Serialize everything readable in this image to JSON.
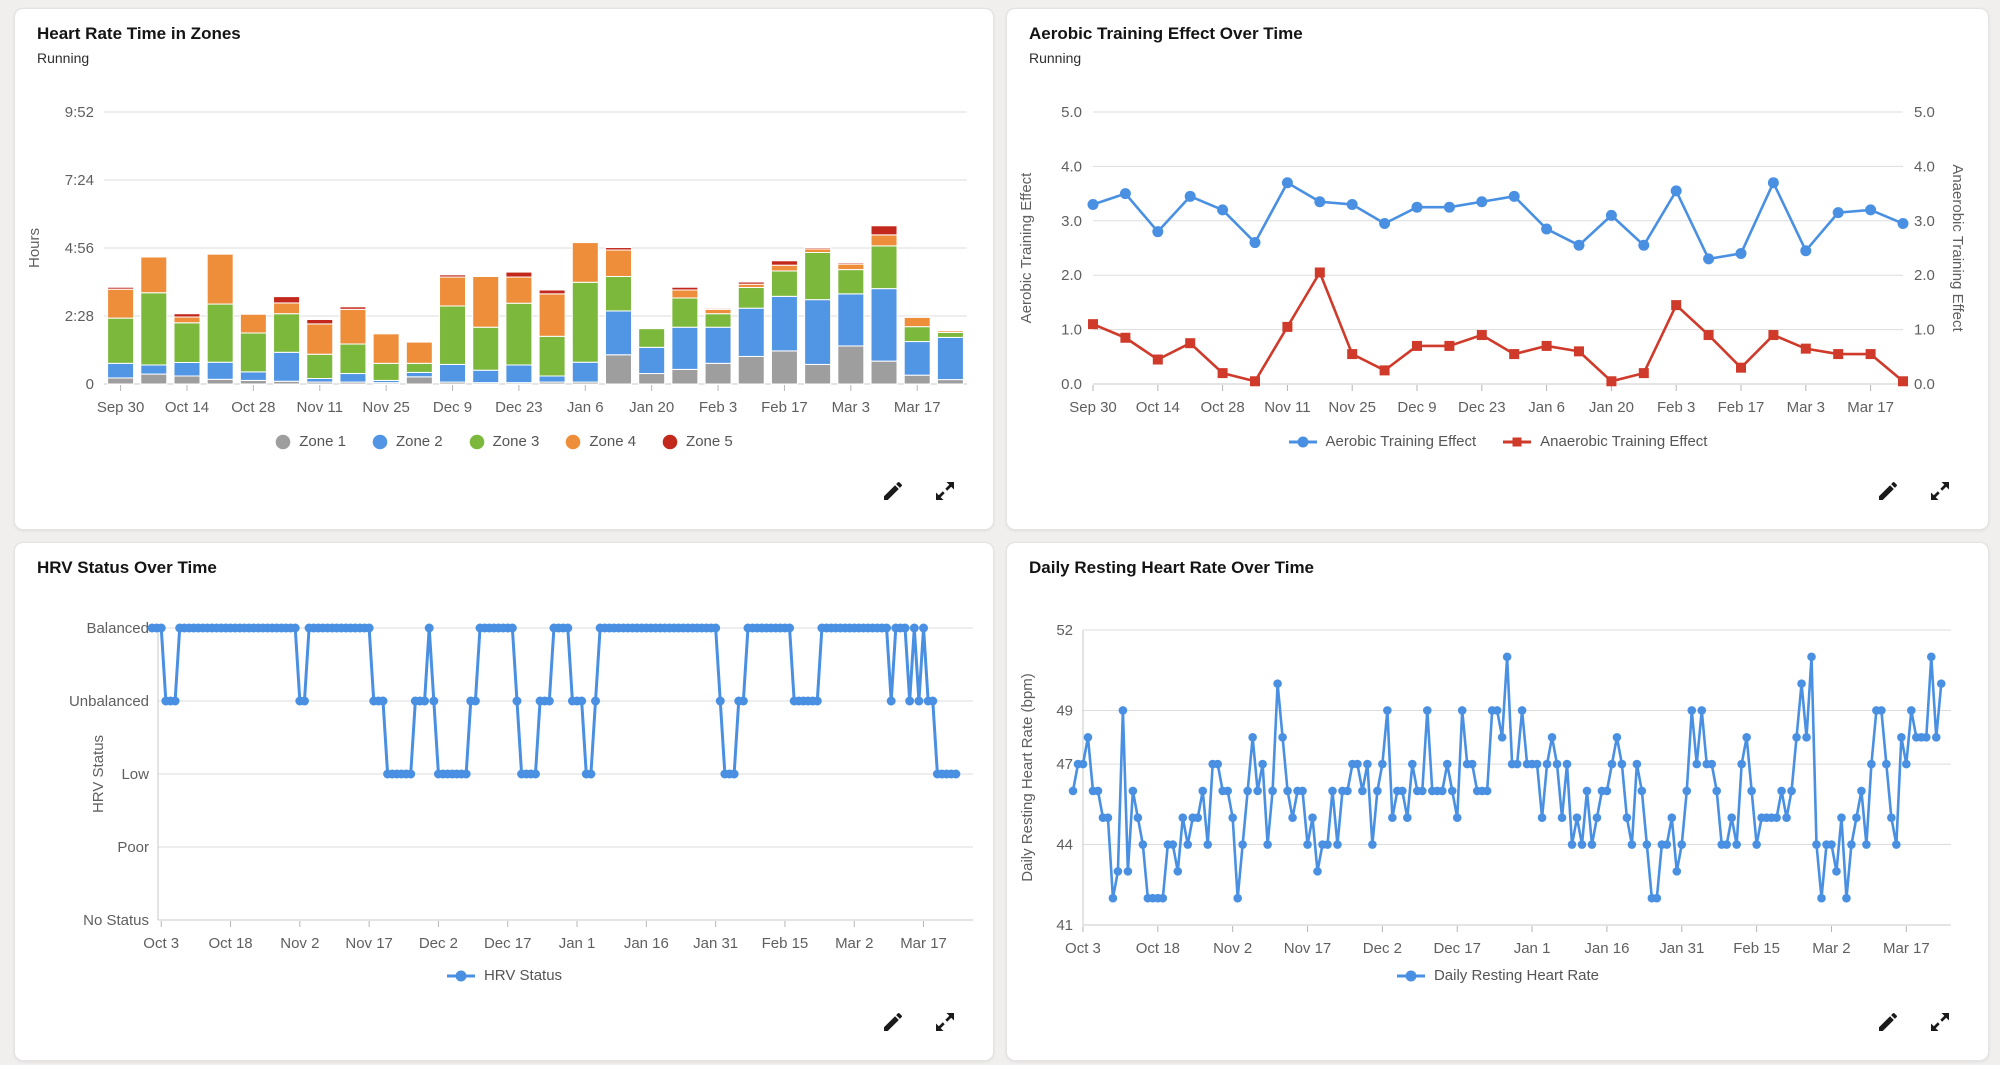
{
  "page": {
    "background": "#f0efee",
    "card_background": "#ffffff",
    "accent_blue": "#4a90e2",
    "accent_red": "#cf3a2a"
  },
  "icons": {
    "edit": "pencil-icon",
    "expand": "expand-arrows-icon"
  },
  "chart_data": [
    {
      "type": "bar",
      "stacked": true,
      "title": "Heart Rate Time in Zones",
      "subtitle": "Running",
      "ylabel": "Hours",
      "ymax": 9.8667,
      "grid": true,
      "legend_position": "bottom",
      "yticks": [
        {
          "v": 0,
          "label": "0"
        },
        {
          "v": 2.4667,
          "label": "2:28"
        },
        {
          "v": 4.9333,
          "label": "4:56"
        },
        {
          "v": 7.4,
          "label": "7:24"
        },
        {
          "v": 9.8667,
          "label": "9:52"
        }
      ],
      "categories": [
        "Sep 30",
        "Oct 7",
        "Oct 14",
        "Oct 21",
        "Oct 28",
        "Nov 4",
        "Nov 11",
        "Nov 18",
        "Nov 25",
        "Dec 2",
        "Dec 9",
        "Dec 16",
        "Dec 23",
        "Dec 30",
        "Jan 6",
        "Jan 13",
        "Jan 20",
        "Jan 27",
        "Feb 3",
        "Feb 10",
        "Feb 17",
        "Feb 24",
        "Mar 3",
        "Mar 10",
        "Mar 17",
        "Mar 24"
      ],
      "label_every": 2,
      "series": [
        {
          "name": "Zone 1",
          "color": "#9e9e9e",
          "values": [
            0.22,
            0.36,
            0.29,
            0.17,
            0.13,
            0.1,
            0.07,
            0.07,
            0.05,
            0.26,
            0.07,
            0.05,
            0.05,
            0.07,
            0.07,
            1.06,
            0.38,
            0.53,
            0.75,
            1.0,
            1.2,
            0.71,
            1.38,
            0.83,
            0.32,
            0.16
          ]
        },
        {
          "name": "Zone 2",
          "color": "#5195e5",
          "values": [
            0.53,
            0.33,
            0.49,
            0.62,
            0.31,
            1.05,
            0.13,
            0.31,
            0.08,
            0.16,
            0.64,
            0.45,
            0.64,
            0.22,
            0.72,
            1.59,
            0.95,
            1.53,
            1.31,
            1.75,
            1.98,
            2.35,
            1.89,
            2.63,
            1.22,
            1.53
          ]
        },
        {
          "name": "Zone 3",
          "color": "#7cb83c",
          "values": [
            1.64,
            2.62,
            1.44,
            2.11,
            1.41,
            1.4,
            0.88,
            1.07,
            0.62,
            0.33,
            2.12,
            1.56,
            2.24,
            1.44,
            2.9,
            1.25,
            0.68,
            1.06,
            0.49,
            0.75,
            0.92,
            1.71,
            0.88,
            1.55,
            0.54,
            0.18
          ]
        },
        {
          "name": "Zone 4",
          "color": "#ee8e3b",
          "values": [
            1.05,
            1.3,
            0.21,
            1.81,
            0.68,
            0.39,
            1.1,
            1.26,
            1.07,
            0.77,
            1.05,
            1.84,
            0.95,
            1.54,
            1.44,
            0.96,
            0.03,
            0.29,
            0.16,
            0.12,
            0.21,
            0.13,
            0.2,
            0.4,
            0.34,
            0.06
          ]
        },
        {
          "name": "Zone 5",
          "color": "#c3281c",
          "values": [
            0.07,
            0.03,
            0.12,
            0.0,
            0.0,
            0.23,
            0.16,
            0.09,
            0.0,
            0.0,
            0.08,
            0.0,
            0.18,
            0.14,
            0.0,
            0.09,
            0.02,
            0.1,
            0.04,
            0.08,
            0.16,
            0.05,
            0.05,
            0.33,
            0.02,
            0.0
          ]
        }
      ],
      "legend": [
        {
          "label": "Zone 1",
          "color": "#9e9e9e",
          "marker": "circle"
        },
        {
          "label": "Zone 2",
          "color": "#5195e5",
          "marker": "circle"
        },
        {
          "label": "Zone 3",
          "color": "#7cb83c",
          "marker": "circle"
        },
        {
          "label": "Zone 4",
          "color": "#ee8e3b",
          "marker": "circle"
        },
        {
          "label": "Zone 5",
          "color": "#c3281c",
          "marker": "circle"
        }
      ]
    },
    {
      "type": "dual-line",
      "title": "Aerobic Training Effect Over Time",
      "subtitle": "Running",
      "ylabel_left": "Aerobic Training Effect",
      "ylabel_right": "Anaerobic Training Effect",
      "ylim": [
        0,
        5
      ],
      "grid": true,
      "legend_position": "bottom",
      "yticks": [
        {
          "v": 0,
          "label": "0.0"
        },
        {
          "v": 1,
          "label": "1.0"
        },
        {
          "v": 2,
          "label": "2.0"
        },
        {
          "v": 3,
          "label": "3.0"
        },
        {
          "v": 4,
          "label": "4.0"
        },
        {
          "v": 5,
          "label": "5.0"
        }
      ],
      "categories": [
        "Sep 30",
        "Oct 7",
        "Oct 14",
        "Oct 21",
        "Oct 28",
        "Nov 4",
        "Nov 11",
        "Nov 18",
        "Nov 25",
        "Dec 2",
        "Dec 9",
        "Dec 16",
        "Dec 23",
        "Dec 30",
        "Jan 6",
        "Jan 13",
        "Jan 20",
        "Jan 27",
        "Feb 3",
        "Feb 10",
        "Feb 17",
        "Feb 24",
        "Mar 3",
        "Mar 10",
        "Mar 17",
        "Mar 24"
      ],
      "label_every": 2,
      "series": [
        {
          "name": "Aerobic Training Effect",
          "color": "#4a90e2",
          "marker": "circle",
          "values": [
            3.3,
            3.5,
            2.8,
            3.45,
            3.2,
            2.6,
            3.7,
            3.35,
            3.3,
            2.95,
            3.25,
            3.25,
            3.35,
            3.45,
            2.85,
            2.55,
            3.1,
            2.55,
            3.55,
            2.3,
            2.4,
            3.7,
            2.45,
            3.15,
            3.2,
            2.95
          ]
        },
        {
          "name": "Anaerobic Training Effect",
          "color": "#cf3a2a",
          "marker": "square",
          "values": [
            1.1,
            0.85,
            0.45,
            0.75,
            0.2,
            0.05,
            1.05,
            2.05,
            0.55,
            0.25,
            0.7,
            0.7,
            0.9,
            0.55,
            0.7,
            0.6,
            0.05,
            0.2,
            1.45,
            0.9,
            0.3,
            0.9,
            0.65,
            0.55,
            0.55,
            0.05
          ]
        }
      ],
      "legend": [
        {
          "label": "Aerobic Training Effect",
          "color": "#4a90e2",
          "marker": "line-circle"
        },
        {
          "label": "Anaerobic Training Effect",
          "color": "#cf3a2a",
          "marker": "line-square"
        }
      ]
    },
    {
      "type": "category-line",
      "title": "HRV Status Over Time",
      "subtitle": "",
      "ylabel": "HRV Status",
      "color": "#4a90e2",
      "grid": true,
      "legend_position": "bottom",
      "y_categories": [
        "Balanced",
        "Unbalanced",
        "Low",
        "Poor",
        "No Status"
      ],
      "xticks": [
        {
          "day": 2,
          "label": "Oct 3"
        },
        {
          "day": 17,
          "label": "Oct 18"
        },
        {
          "day": 32,
          "label": "Nov 2"
        },
        {
          "day": 47,
          "label": "Nov 17"
        },
        {
          "day": 62,
          "label": "Dec 2"
        },
        {
          "day": 77,
          "label": "Dec 17"
        },
        {
          "day": 92,
          "label": "Jan 1"
        },
        {
          "day": 107,
          "label": "Jan 16"
        },
        {
          "day": 122,
          "label": "Jan 31"
        },
        {
          "day": 137,
          "label": "Feb 15"
        },
        {
          "day": 152,
          "label": "Mar 2"
        },
        {
          "day": 167,
          "label": "Mar 17"
        }
      ],
      "runs": [
        [
          "Balanced",
          3
        ],
        [
          "Unbalanced",
          3
        ],
        [
          "Balanced",
          26
        ],
        [
          "Unbalanced",
          2
        ],
        [
          "Balanced",
          14
        ],
        [
          "Unbalanced",
          3
        ],
        [
          "Low",
          6
        ],
        [
          "Unbalanced",
          3
        ],
        [
          "Balanced",
          1
        ],
        [
          "Unbalanced",
          1
        ],
        [
          "Low",
          7
        ],
        [
          "Unbalanced",
          2
        ],
        [
          "Balanced",
          8
        ],
        [
          "Unbalanced",
          1
        ],
        [
          "Low",
          4
        ],
        [
          "Unbalanced",
          3
        ],
        [
          "Balanced",
          4
        ],
        [
          "Unbalanced",
          3
        ],
        [
          "Low",
          2
        ],
        [
          "Unbalanced",
          1
        ],
        [
          "Balanced",
          26
        ],
        [
          "Unbalanced",
          1
        ],
        [
          "Low",
          3
        ],
        [
          "Unbalanced",
          2
        ],
        [
          "Balanced",
          10
        ],
        [
          "Unbalanced",
          6
        ],
        [
          "Balanced",
          15
        ],
        [
          "Unbalanced",
          1
        ],
        [
          "Balanced",
          3
        ],
        [
          "Unbalanced",
          1
        ],
        [
          "Balanced",
          1
        ],
        [
          "Unbalanced",
          1
        ],
        [
          "Balanced",
          1
        ],
        [
          "Unbalanced",
          2
        ],
        [
          "Low",
          5
        ]
      ],
      "legend": [
        {
          "label": "HRV Status",
          "color": "#4a90e2",
          "marker": "line-circle"
        }
      ]
    },
    {
      "type": "daily-line",
      "title": "Daily Resting Heart Rate Over Time",
      "subtitle": "",
      "ylabel": "Daily Resting Heart Rate (bpm)",
      "color": "#4a90e2",
      "grid": true,
      "legend_position": "bottom",
      "ylim": [
        41,
        52
      ],
      "yticks": [
        {
          "v": 41,
          "label": "41"
        },
        {
          "v": 44,
          "label": "44"
        },
        {
          "v": 47,
          "label": "47"
        },
        {
          "v": 49,
          "label": "49"
        },
        {
          "v": 52,
          "label": "52"
        }
      ],
      "xticks": [
        {
          "day": 2,
          "label": "Oct 3"
        },
        {
          "day": 17,
          "label": "Oct 18"
        },
        {
          "day": 32,
          "label": "Nov 2"
        },
        {
          "day": 47,
          "label": "Nov 17"
        },
        {
          "day": 62,
          "label": "Dec 2"
        },
        {
          "day": 77,
          "label": "Dec 17"
        },
        {
          "day": 92,
          "label": "Jan 1"
        },
        {
          "day": 107,
          "label": "Jan 16"
        },
        {
          "day": 122,
          "label": "Jan 31"
        },
        {
          "day": 137,
          "label": "Feb 15"
        },
        {
          "day": 152,
          "label": "Mar 2"
        },
        {
          "day": 167,
          "label": "Mar 17"
        }
      ],
      "values": [
        46,
        47,
        47,
        48,
        46,
        46,
        45,
        45,
        42,
        43,
        49,
        43,
        46,
        45,
        44,
        42,
        42,
        42,
        42,
        44,
        44,
        43,
        45,
        44,
        45,
        45,
        46,
        44,
        47,
        47,
        46,
        46,
        45,
        42,
        44,
        46,
        48,
        46,
        47,
        44,
        46,
        50,
        48,
        46,
        45,
        46,
        46,
        44,
        45,
        43,
        44,
        44,
        46,
        44,
        46,
        46,
        47,
        47,
        46,
        47,
        44,
        46,
        47,
        49,
        45,
        46,
        46,
        45,
        47,
        46,
        46,
        49,
        46,
        46,
        46,
        47,
        46,
        45,
        49,
        47,
        47,
        46,
        46,
        46,
        49,
        49,
        48,
        51,
        47,
        47,
        49,
        47,
        47,
        47,
        45,
        47,
        48,
        47,
        45,
        47,
        44,
        45,
        44,
        46,
        44,
        45,
        46,
        46,
        47,
        48,
        47,
        45,
        44,
        47,
        46,
        44,
        42,
        42,
        44,
        44,
        45,
        43,
        44,
        46,
        49,
        47,
        49,
        47,
        47,
        46,
        44,
        44,
        45,
        44,
        47,
        48,
        46,
        44,
        45,
        45,
        45,
        45,
        46,
        45,
        46,
        48,
        50,
        48,
        51,
        44,
        42,
        44,
        44,
        43,
        45,
        42,
        44,
        45,
        46,
        44,
        47,
        49,
        49,
        47,
        45,
        44,
        48,
        47,
        49,
        48,
        48,
        48,
        51,
        48,
        50
      ],
      "legend": [
        {
          "label": "Daily Resting Heart Rate",
          "color": "#4a90e2",
          "marker": "line-circle"
        }
      ]
    }
  ]
}
